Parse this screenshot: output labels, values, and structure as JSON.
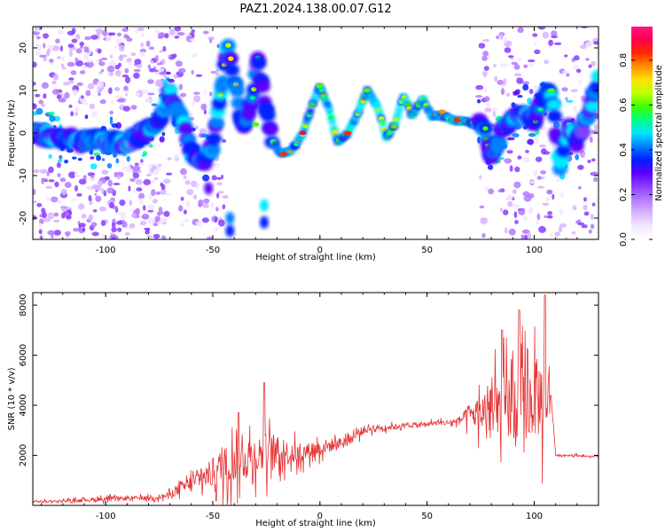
{
  "title": "PAZ1.2024.138.00.07.G12",
  "colors": {
    "snr_line": "#e53333",
    "spectrogram_palette": [
      "#ffffff",
      "#f2e6ff",
      "#d8b4ff",
      "#b37aff",
      "#8a3dff",
      "#5a00ff",
      "#0020ff",
      "#0080ff",
      "#00e6ff",
      "#00ff80",
      "#40ff00",
      "#c0ff00",
      "#ffe000",
      "#ff9000",
      "#ff2a00",
      "#ff0050",
      "#ff1480"
    ]
  },
  "chart_data": [
    {
      "type": "heatmap",
      "title": "PAZ1.2024.138.00.07.G12",
      "xlabel": "Height of straight line (km)",
      "ylabel": "Frequency (Hz)",
      "xlim": [
        -134,
        130
      ],
      "ylim": [
        -25,
        25
      ],
      "xticks": [
        "-100",
        "-50",
        "0",
        "50",
        "100"
      ],
      "yticks": [
        "-20",
        "-10",
        "0",
        "10",
        "20"
      ],
      "colorbar": {
        "label": "Normalized spectral amplitude",
        "range": [
          0.0,
          0.95
        ],
        "ticks": [
          "0.0",
          "0.2",
          "0.4",
          "0.6",
          "0.8"
        ]
      },
      "ridge_trace": [
        {
          "x": -134,
          "y": 0
        },
        {
          "x": -110,
          "y": -2
        },
        {
          "x": -90,
          "y": -2
        },
        {
          "x": -75,
          "y": 2
        },
        {
          "x": -70,
          "y": 10
        },
        {
          "x": -64,
          "y": 2
        },
        {
          "x": -60,
          "y": -4
        },
        {
          "x": -55,
          "y": -7
        },
        {
          "x": -50,
          "y": -3
        },
        {
          "x": -46,
          "y": 10
        },
        {
          "x": -43,
          "y": 20
        },
        {
          "x": -40,
          "y": 12
        },
        {
          "x": -36,
          "y": 2
        },
        {
          "x": -32,
          "y": 6
        },
        {
          "x": -29,
          "y": 18
        },
        {
          "x": -26,
          "y": 8
        },
        {
          "x": -22,
          "y": -2
        },
        {
          "x": -18,
          "y": -5
        },
        {
          "x": -13,
          "y": -4
        },
        {
          "x": -8,
          "y": 0
        },
        {
          "x": -4,
          "y": 6
        },
        {
          "x": 0,
          "y": 11
        },
        {
          "x": 4,
          "y": 6
        },
        {
          "x": 8,
          "y": -2
        },
        {
          "x": 13,
          "y": 0
        },
        {
          "x": 18,
          "y": 5
        },
        {
          "x": 22,
          "y": 10
        },
        {
          "x": 27,
          "y": 6
        },
        {
          "x": 31,
          "y": -1
        },
        {
          "x": 35,
          "y": 2
        },
        {
          "x": 39,
          "y": 9
        },
        {
          "x": 43,
          "y": 4
        },
        {
          "x": 48,
          "y": 8
        },
        {
          "x": 52,
          "y": 4
        },
        {
          "x": 57,
          "y": 4
        },
        {
          "x": 62,
          "y": 3
        },
        {
          "x": 68,
          "y": 3
        },
        {
          "x": 72,
          "y": 2
        },
        {
          "x": 76,
          "y": 3
        },
        {
          "x": 80,
          "y": -5
        },
        {
          "x": 85,
          "y": 0
        },
        {
          "x": 90,
          "y": 3
        },
        {
          "x": 96,
          "y": 5
        },
        {
          "x": 100,
          "y": 3
        },
        {
          "x": 104,
          "y": 8
        },
        {
          "x": 108,
          "y": 10
        },
        {
          "x": 112,
          "y": -8
        },
        {
          "x": 116,
          "y": 2
        },
        {
          "x": 120,
          "y": -2
        },
        {
          "x": 125,
          "y": 4
        },
        {
          "x": 130,
          "y": 12
        }
      ]
    },
    {
      "type": "line",
      "xlabel": "Height of straight line (km)",
      "ylabel": "SNR (10 * v/v)",
      "xlim": [
        -134,
        130
      ],
      "ylim": [
        0,
        8500
      ],
      "xticks": [
        "-100",
        "-50",
        "0",
        "50",
        "100"
      ],
      "yticks": [
        "2000",
        "4000",
        "6000",
        "8000"
      ],
      "series": [
        {
          "x": [
            -134,
            -120,
            -110,
            -100,
            -90,
            -80,
            -75,
            -70,
            -65,
            -60,
            -55,
            -50,
            -45,
            -40,
            -35,
            -30,
            -25,
            -20,
            -15,
            -10,
            -5,
            0,
            5,
            10,
            15,
            20,
            25,
            30,
            35,
            40,
            45,
            50,
            55,
            60,
            65,
            70,
            75,
            80,
            85,
            90,
            95,
            100,
            104,
            106,
            108,
            110,
            115,
            120,
            125,
            130
          ],
          "values": [
            150,
            180,
            220,
            250,
            280,
            300,
            330,
            420,
            700,
            900,
            1100,
            1300,
            1600,
            1700,
            1900,
            2000,
            2100,
            2050,
            2100,
            2000,
            2200,
            2300,
            2400,
            2500,
            2700,
            3000,
            3100,
            3100,
            3150,
            3200,
            3200,
            3250,
            3300,
            3300,
            3400,
            3600,
            3700,
            3800,
            3900,
            4000,
            4100,
            4200,
            4300,
            4400,
            4300,
            2000,
            2000,
            2000,
            1950,
            1950
          ],
          "noise_amplitude": [
            80,
            100,
            150,
            200,
            180,
            180,
            200,
            300,
            500,
            700,
            900,
            1300,
            1700,
            1800,
            1900,
            1700,
            1800,
            1400,
            1100,
            900,
            700,
            700,
            600,
            500,
            450,
            400,
            300,
            250,
            200,
            200,
            200,
            200,
            200,
            250,
            300,
            1000,
            1600,
            2300,
            2800,
            3300,
            3400,
            3200,
            3800,
            3000,
            150,
            80,
            80,
            80,
            80,
            80
          ]
        }
      ],
      "peaks": [
        {
          "x": -38,
          "y": 3700
        },
        {
          "x": -26,
          "y": 4900
        },
        {
          "x": 85,
          "y": 7000
        },
        {
          "x": 93,
          "y": 7800
        },
        {
          "x": 105,
          "y": 8400
        }
      ]
    }
  ]
}
